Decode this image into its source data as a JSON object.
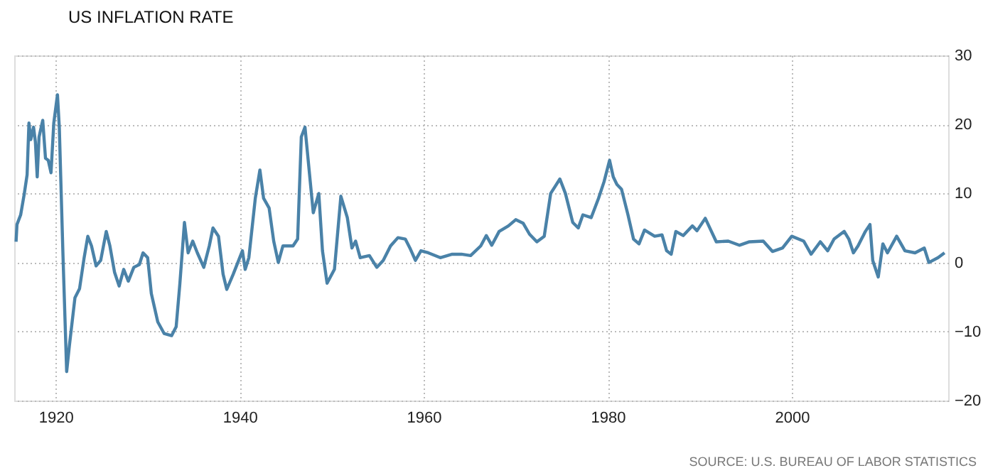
{
  "chart_data": {
    "type": "line",
    "title": "US INFLATION RATE",
    "annotations": [
      "SOURCE: U.S. BUREAU OF LABOR STATISTICS"
    ],
    "x": [
      1915.7,
      1915.8,
      1916.2,
      1916.6,
      1916.9,
      1917.1,
      1917.3,
      1917.6,
      1917.8,
      1918.0,
      1918.2,
      1918.6,
      1918.9,
      1919.2,
      1919.5,
      1919.8,
      1920.2,
      1920.4,
      1920.8,
      1921.2,
      1921.5,
      1922.1,
      1922.6,
      1923.1,
      1923.5,
      1923.9,
      1924.4,
      1924.9,
      1925.5,
      1925.9,
      1926.4,
      1926.9,
      1927.4,
      1927.9,
      1928.5,
      1929.1,
      1929.5,
      1930.0,
      1930.4,
      1931.1,
      1931.8,
      1932.6,
      1933.1,
      1933.5,
      1934.0,
      1934.4,
      1934.9,
      1935.4,
      1936.1,
      1936.7,
      1937.1,
      1937.7,
      1938.2,
      1938.6,
      1939.3,
      1940.3,
      1940.6,
      1941.0,
      1941.7,
      1942.2,
      1942.6,
      1943.2,
      1943.7,
      1944.2,
      1944.7,
      1945.8,
      1946.3,
      1946.7,
      1947.1,
      1947.6,
      1948.0,
      1948.6,
      1949.0,
      1949.5,
      1950.3,
      1951.0,
      1951.7,
      1952.2,
      1952.6,
      1953.1,
      1954.1,
      1954.9,
      1955.6,
      1956.4,
      1957.2,
      1958.0,
      1958.5,
      1959.1,
      1959.7,
      1960.5,
      1961.8,
      1963.1,
      1964.1,
      1965.1,
      1966.2,
      1966.8,
      1967.4,
      1968.2,
      1969.2,
      1970.0,
      1970.8,
      1971.5,
      1972.3,
      1973.1,
      1973.8,
      1974.8,
      1975.4,
      1976.2,
      1976.8,
      1977.3,
      1978.2,
      1979.0,
      1979.6,
      1980.2,
      1980.6,
      1981.0,
      1981.5,
      1982.2,
      1982.8,
      1983.4,
      1984.0,
      1985.1,
      1985.9,
      1986.4,
      1986.9,
      1987.4,
      1988.2,
      1989.2,
      1989.7,
      1990.6,
      1991.8,
      1993.1,
      1994.3,
      1995.4,
      1996.9,
      1997.9,
      1999.0,
      2000.0,
      2001.3,
      2002.1,
      2003.1,
      2003.9,
      2004.6,
      2005.7,
      2006.2,
      2006.7,
      2007.2,
      2008.0,
      2008.5,
      2008.8,
      2009.4,
      2009.9,
      2010.4,
      2011.4,
      2012.3,
      2013.4,
      2014.4,
      2014.9,
      2015.9,
      2016.6
    ],
    "series": [
      {
        "color": "#4a82a8",
        "values": [
          3.0,
          5.5,
          6.9,
          10,
          12.7,
          20.2,
          17.8,
          19.6,
          17.5,
          12.4,
          18.2,
          20.6,
          15.1,
          14.8,
          13.0,
          20.2,
          24.3,
          19.6,
          1.0,
          -15.8,
          -12.0,
          -5.1,
          -3.8,
          0.7,
          3.8,
          2.4,
          -0.5,
          0.3,
          4.5,
          2.4,
          -1.4,
          -3.4,
          -1.0,
          -2.7,
          -0.7,
          -0.3,
          1.4,
          0.7,
          -4.5,
          -8.6,
          -10.3,
          -10.6,
          -9.3,
          -3.1,
          5.8,
          1.4,
          3.1,
          1.4,
          -0.7,
          2.4,
          5.0,
          3.8,
          -1.7,
          -3.9,
          -1.7,
          1.7,
          -1.0,
          0.7,
          9.3,
          13.4,
          9.3,
          7.9,
          3.1,
          0,
          2.4,
          2.4,
          3.4,
          18.2,
          19.6,
          12.7,
          7.2,
          10.0,
          1.7,
          -3.0,
          -1.0,
          9.6,
          6.5,
          2.1,
          3.1,
          0.7,
          1.0,
          -0.7,
          0.3,
          2.4,
          3.6,
          3.4,
          2.1,
          0.3,
          1.7,
          1.4,
          0.7,
          1.2,
          1.2,
          1.0,
          2.4,
          3.9,
          2.5,
          4.5,
          5.3,
          6.2,
          5.7,
          4.1,
          3.0,
          3.8,
          10.0,
          12.1,
          10.0,
          5.8,
          5.0,
          6.9,
          6.5,
          9.3,
          11.7,
          14.8,
          12.4,
          11.3,
          10.6,
          6.9,
          3.4,
          2.7,
          4.7,
          3.8,
          4.0,
          1.7,
          1.2,
          4.5,
          3.9,
          5.3,
          4.6,
          6.4,
          3.0,
          3.1,
          2.5,
          3.0,
          3.1,
          1.6,
          2.1,
          3.8,
          3.1,
          1.2,
          3.0,
          1.7,
          3.4,
          4.5,
          3.4,
          1.4,
          2.4,
          4.5,
          5.5,
          0.3,
          -2.1,
          2.7,
          1.4,
          3.8,
          1.7,
          1.4,
          2.1,
          0,
          0.7,
          1.4
        ]
      }
    ],
    "xlim": [
      1915.5,
      2017
    ],
    "xticks": [
      1920,
      1940,
      1960,
      1980,
      2000
    ],
    "ylim": [
      -20,
      30
    ],
    "yticks": [
      -20,
      -10,
      0,
      10,
      20,
      30
    ],
    "grid": true,
    "marker": "none",
    "line_style": "solid"
  }
}
